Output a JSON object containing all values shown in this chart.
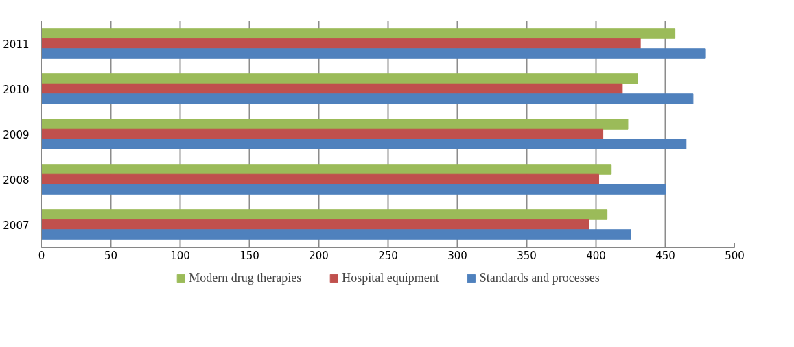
{
  "chart_data": {
    "type": "bar",
    "orientation": "horizontal",
    "categories": [
      "2011",
      "2010",
      "2009",
      "2008",
      "2007"
    ],
    "series": [
      {
        "name": "Modern drug therapies",
        "color": "#9bbb59",
        "values": [
          457,
          430,
          423,
          411,
          408
        ]
      },
      {
        "name": "Hospital equipment",
        "color": "#c0504d",
        "values": [
          432,
          419,
          405,
          402,
          395
        ]
      },
      {
        "name": "Standards and processes",
        "color": "#4f81bd",
        "values": [
          479,
          470,
          465,
          450,
          425
        ]
      }
    ],
    "xlim": [
      0,
      500
    ],
    "xticks": [
      0,
      50,
      100,
      150,
      200,
      250,
      300,
      350,
      400,
      450,
      500
    ],
    "grid": "x",
    "legend": "bottom"
  }
}
